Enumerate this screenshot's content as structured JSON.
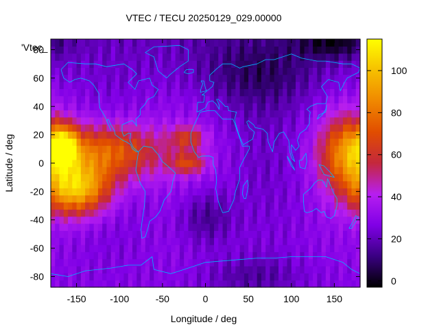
{
  "chart_data": {
    "type": "heatmap",
    "title": "VTEC / TECU 20250129_029.00000",
    "xlabel": "Longitude / deg",
    "ylabel": "Latitude / deg",
    "key_label": "'Vtec_",
    "xlim": [
      -180,
      180
    ],
    "ylim": [
      -87.5,
      87.5
    ],
    "x_ticks": [
      -150,
      -100,
      -50,
      0,
      50,
      100,
      150
    ],
    "y_ticks": [
      -80,
      -60,
      -40,
      -20,
      0,
      20,
      40,
      60,
      80
    ],
    "colorbar": {
      "range": [
        -3,
        115
      ],
      "ticks": [
        0,
        20,
        40,
        60,
        80,
        100
      ],
      "palette": [
        "#000000",
        "#3a0082",
        "#8000e6",
        "#b71ef0",
        "#c4283d",
        "#e14d00",
        "#f08800",
        "#f6c000",
        "#ffff00"
      ]
    },
    "grid_spacing": {
      "lon": 5,
      "lat": 5
    },
    "features": [
      {
        "lon": -150,
        "lat": -18,
        "value": 100,
        "spread_lon": 28,
        "spread_lat": 13
      },
      {
        "lon": -115,
        "lat": 8,
        "value": 82,
        "spread_lon": 45,
        "spread_lat": 14
      },
      {
        "lon": -165,
        "lat": 12,
        "value": 92,
        "spread_lon": 12,
        "spread_lat": 10
      },
      {
        "lon": 165,
        "lat": 8,
        "value": 78,
        "spread_lon": 22,
        "spread_lat": 18
      },
      {
        "lon": -20,
        "lat": 18,
        "value": 58,
        "spread_lon": 14,
        "spread_lat": 6
      },
      {
        "lon": -20,
        "lat": 0,
        "value": 60,
        "spread_lon": 14,
        "spread_lat": 5
      },
      {
        "lon": 0,
        "lat": -38,
        "value": 14,
        "spread_lon": 22,
        "spread_lat": 14
      },
      {
        "lon": 60,
        "lat": 62,
        "value": 14,
        "spread_lon": 55,
        "spread_lat": 20
      },
      {
        "lon": 150,
        "lat": 85,
        "value": 10,
        "spread_lon": 30,
        "spread_lat": 8
      },
      {
        "lon": 55,
        "lat": -80,
        "value": 18,
        "spread_lon": 40,
        "spread_lat": 10
      }
    ]
  }
}
